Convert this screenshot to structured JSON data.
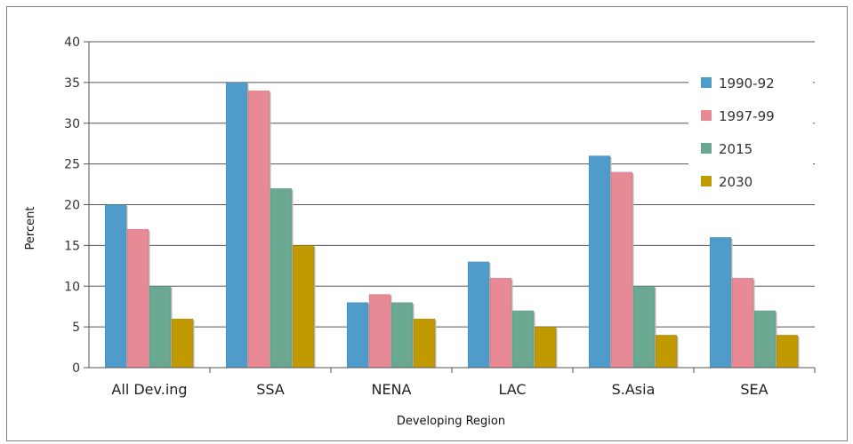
{
  "chart_data": {
    "type": "bar",
    "title": "",
    "xlabel": "Developing Region",
    "ylabel": "Percent",
    "ylim": [
      0,
      40
    ],
    "yticks": [
      0,
      5,
      10,
      15,
      20,
      25,
      30,
      35,
      40
    ],
    "grid": true,
    "legend_position": "top-right",
    "categories": [
      "All Dev.ing",
      "SSA",
      "NENA",
      "LAC",
      "S.Asia",
      "SEA"
    ],
    "series": [
      {
        "name": "1990-92",
        "color": "#4f9bc9",
        "values": [
          20,
          35,
          8,
          13,
          26,
          16
        ]
      },
      {
        "name": "1997-99",
        "color": "#e88a95",
        "values": [
          17,
          34,
          9,
          11,
          24,
          11
        ]
      },
      {
        "name": "2015",
        "color": "#6aa892",
        "values": [
          10,
          22,
          8,
          7,
          10,
          7
        ]
      },
      {
        "name": "2030",
        "color": "#c09a00",
        "values": [
          6,
          15,
          6,
          5,
          4,
          4
        ]
      }
    ]
  }
}
